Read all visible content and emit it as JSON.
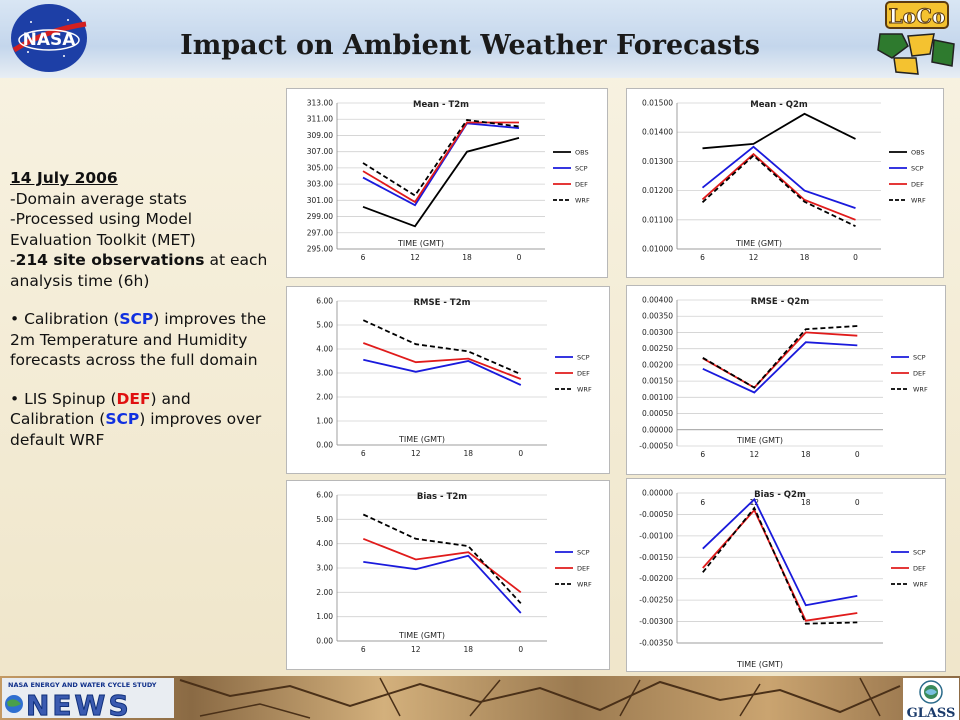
{
  "title": "Impact on Ambient Weather Forecasts",
  "logos": {
    "nasa": "NASA",
    "loco": "LoCo",
    "news_caption": "NASA ENERGY AND WATER CYCLE STUDY",
    "news": "NEWS",
    "glass": "GLASS"
  },
  "notes": {
    "date": "14 July 2006",
    "line1": "-Domain average stats",
    "line2": "-Processed using Model Evaluation Toolkit (MET)",
    "line3_prefix": "-",
    "line3_bold": "214 site observations",
    "line3_suffix": " at each analysis time (6h)",
    "b1_pre": "• Calibration (",
    "b1_scp": "SCP",
    "b1_post": ") improves the 2m Temperature and Humidity forecasts across the full domain",
    "b2_pre": "• LIS Spinup (",
    "b2_def": "DEF",
    "b2_mid": ") and Calibration (",
    "b2_scp": "SCP",
    "b2_post": ") improves over default WRF"
  },
  "colors": {
    "OBS": "#000000",
    "SCP": "#1a1adc",
    "DEF": "#e01b1b",
    "WRF": "#000000"
  },
  "chart_data": [
    {
      "id": "mean-t2m",
      "type": "line",
      "title": "Mean - T2m",
      "xlabel": "TIME (GMT)",
      "categories": [
        "6",
        "12",
        "18",
        "0"
      ],
      "ylim": [
        295,
        313
      ],
      "yticks": [
        295,
        297,
        299,
        301,
        303,
        305,
        307,
        309,
        311,
        313
      ],
      "ydec": 2,
      "series": [
        {
          "name": "OBS",
          "values": [
            300.2,
            297.8,
            307.0,
            308.7
          ]
        },
        {
          "name": "SCP",
          "values": [
            303.8,
            300.4,
            310.5,
            309.9
          ]
        },
        {
          "name": "DEF",
          "values": [
            304.6,
            300.8,
            310.6,
            310.6
          ]
        },
        {
          "name": "WRF",
          "values": [
            305.6,
            301.6,
            310.9,
            310.1
          ]
        }
      ]
    },
    {
      "id": "mean-q2m",
      "type": "line",
      "title": "Mean - Q2m",
      "xlabel": "TIME (GMT)",
      "categories": [
        "6",
        "12",
        "18",
        "0"
      ],
      "ylim": [
        0.01,
        0.015
      ],
      "yticks": [
        0.01,
        0.011,
        0.012,
        0.013,
        0.014,
        0.015
      ],
      "ydec": 5,
      "series": [
        {
          "name": "OBS",
          "values": [
            0.01345,
            0.0136,
            0.01463,
            0.01377
          ]
        },
        {
          "name": "SCP",
          "values": [
            0.0121,
            0.0135,
            0.012,
            0.0114
          ]
        },
        {
          "name": "DEF",
          "values": [
            0.0117,
            0.01325,
            0.01168,
            0.011
          ]
        },
        {
          "name": "WRF",
          "values": [
            0.0116,
            0.0132,
            0.01162,
            0.01078
          ]
        }
      ]
    },
    {
      "id": "rmse-t2m",
      "type": "line",
      "title": "RMSE - T2m",
      "xlabel": "TIME (GMT)",
      "categories": [
        "6",
        "12",
        "18",
        "0"
      ],
      "ylim": [
        0,
        6
      ],
      "yticks": [
        0,
        1,
        2,
        3,
        4,
        5,
        6
      ],
      "ydec": 2,
      "series": [
        {
          "name": "SCP",
          "values": [
            3.55,
            3.05,
            3.5,
            2.5
          ]
        },
        {
          "name": "DEF",
          "values": [
            4.25,
            3.45,
            3.6,
            2.75
          ]
        },
        {
          "name": "WRF",
          "values": [
            5.2,
            4.2,
            3.9,
            2.95
          ]
        }
      ]
    },
    {
      "id": "rmse-q2m",
      "type": "line",
      "title": "RMSE - Q2m",
      "xlabel": "TIME (GMT)",
      "categories": [
        "6",
        "12",
        "18",
        "0"
      ],
      "ylim": [
        -0.0005,
        0.004
      ],
      "yticks": [
        -0.0005,
        0,
        0.0005,
        0.001,
        0.0015,
        0.002,
        0.0025,
        0.003,
        0.0035,
        0.004
      ],
      "ydec": 5,
      "series": [
        {
          "name": "SCP",
          "values": [
            0.00188,
            0.00115,
            0.0027,
            0.0026
          ]
        },
        {
          "name": "DEF",
          "values": [
            0.0022,
            0.0013,
            0.003,
            0.0029
          ]
        },
        {
          "name": "WRF",
          "values": [
            0.00222,
            0.0013,
            0.0031,
            0.0032
          ]
        }
      ]
    },
    {
      "id": "bias-t2m",
      "type": "line",
      "title": "Bias - T2m",
      "xlabel": "TIME (GMT)",
      "categories": [
        "6",
        "12",
        "18",
        "0"
      ],
      "ylim": [
        0,
        6
      ],
      "yticks": [
        0,
        1,
        2,
        3,
        4,
        5,
        6
      ],
      "ydec": 2,
      "series": [
        {
          "name": "SCP",
          "values": [
            3.25,
            2.95,
            3.5,
            1.15
          ]
        },
        {
          "name": "DEF",
          "values": [
            4.2,
            3.35,
            3.65,
            2.0
          ]
        },
        {
          "name": "WRF",
          "values": [
            5.2,
            4.2,
            3.9,
            1.55
          ]
        }
      ]
    },
    {
      "id": "bias-q2m",
      "type": "line",
      "title": "Bias - Q2m",
      "xlabel": "TIME (GMT)",
      "categories": [
        "6",
        "12",
        "18",
        "0"
      ],
      "ylim": [
        -0.0035,
        0
      ],
      "yticks": [
        -0.0035,
        -0.003,
        -0.0025,
        -0.002,
        -0.0015,
        -0.001,
        -0.0005,
        0
      ],
      "ydec": 5,
      "series": [
        {
          "name": "SCP",
          "values": [
            -0.0013,
            -0.00015,
            -0.00262,
            -0.0024
          ]
        },
        {
          "name": "DEF",
          "values": [
            -0.00175,
            -0.0004,
            -0.00298,
            -0.0028
          ]
        },
        {
          "name": "WRF",
          "values": [
            -0.00185,
            -0.00035,
            -0.00305,
            -0.00302
          ]
        }
      ]
    }
  ]
}
